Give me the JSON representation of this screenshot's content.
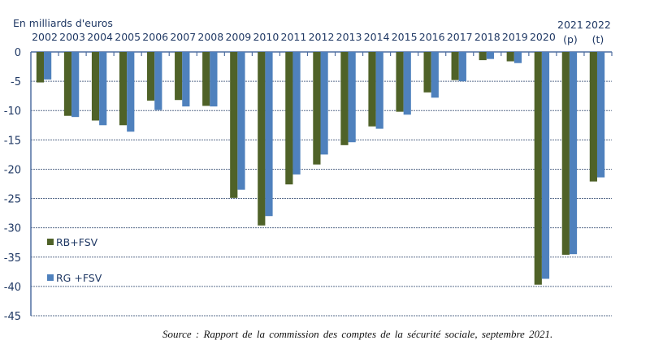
{
  "chart_data": {
    "type": "bar",
    "unit_label": "En milliards d'euros",
    "categories": [
      "2002",
      "2003",
      "2004",
      "2005",
      "2006",
      "2007",
      "2008",
      "2009",
      "2010",
      "2011",
      "2012",
      "2013",
      "2014",
      "2015",
      "2016",
      "2017",
      "2018",
      "2019",
      "2020",
      "2021",
      "2022"
    ],
    "category_notes": {
      "2021": "(p)",
      "2022": "(t)"
    },
    "series": [
      {
        "name": "RB+FSV",
        "color": "#4f6228",
        "values": [
          -5.2,
          -10.9,
          -11.7,
          -12.5,
          -8.3,
          -8.2,
          -9.2,
          -24.9,
          -29.6,
          -22.6,
          -19.2,
          -15.9,
          -12.7,
          -10.2,
          -6.9,
          -4.8,
          -1.4,
          -1.6,
          -39.7,
          -34.6,
          -22.1
        ]
      },
      {
        "name": "RG +FSV",
        "color": "#4f81bd",
        "values": [
          -4.7,
          -11.1,
          -12.5,
          -13.6,
          -9.9,
          -9.3,
          -9.3,
          -23.5,
          -28.0,
          -20.9,
          -17.5,
          -15.4,
          -13.1,
          -10.7,
          -7.8,
          -5.0,
          -1.2,
          -1.9,
          -38.7,
          -34.5,
          -21.4
        ]
      }
    ],
    "yticks": [
      "0",
      "-5",
      "-10",
      "-15",
      "-20",
      "-25",
      "-30",
      "-35",
      "-40",
      "-45"
    ],
    "ylim": [
      -45,
      0
    ],
    "grid": true,
    "legend": "left"
  },
  "source": "Source : Rapport de la commission des comptes de la sécurité sociale, septembre 2021."
}
